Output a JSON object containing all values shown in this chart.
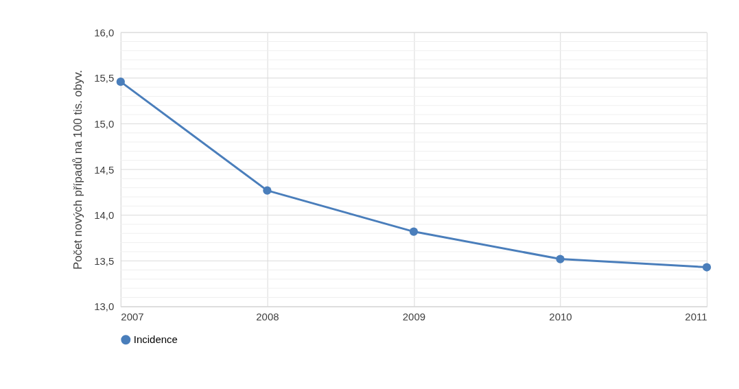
{
  "chart_data": {
    "type": "line",
    "ylabel": "Počet nových případů na 100 tis. obyv.",
    "x": [
      2007,
      2008,
      2009,
      2010,
      2011
    ],
    "series": [
      {
        "name": "Incidence",
        "color": "#4a7ebb",
        "values": [
          15.46,
          14.27,
          13.82,
          13.52,
          13.43
        ]
      }
    ],
    "xlim": [
      2007,
      2011
    ],
    "xticks": [
      2007,
      2008,
      2009,
      2010,
      2011
    ],
    "ylim": [
      13.0,
      16.0
    ],
    "yticks": [
      {
        "value": 13.0,
        "label": "13,0"
      },
      {
        "value": 13.1,
        "label": null
      },
      {
        "value": 13.2,
        "label": null
      },
      {
        "value": 13.3,
        "label": null
      },
      {
        "value": 13.4,
        "label": null
      },
      {
        "value": 13.5,
        "label": "13,5"
      },
      {
        "value": 13.6,
        "label": null
      },
      {
        "value": 13.7,
        "label": null
      },
      {
        "value": 13.8,
        "label": null
      },
      {
        "value": 13.9,
        "label": null
      },
      {
        "value": 14.0,
        "label": "14,0"
      },
      {
        "value": 14.1,
        "label": null
      },
      {
        "value": 14.2,
        "label": null
      },
      {
        "value": 14.3,
        "label": null
      },
      {
        "value": 14.4,
        "label": null
      },
      {
        "value": 14.5,
        "label": "14,5"
      },
      {
        "value": 14.6,
        "label": null
      },
      {
        "value": 14.7,
        "label": null
      },
      {
        "value": 14.8,
        "label": null
      },
      {
        "value": 14.9,
        "label": null
      },
      {
        "value": 15.0,
        "label": "15,0"
      },
      {
        "value": 15.1,
        "label": null
      },
      {
        "value": 15.2,
        "label": null
      },
      {
        "value": 15.3,
        "label": null
      },
      {
        "value": 15.4,
        "label": null
      },
      {
        "value": 15.5,
        "label": "15,5"
      },
      {
        "value": 15.6,
        "label": null
      },
      {
        "value": 15.7,
        "label": null
      },
      {
        "value": 15.8,
        "label": null
      },
      {
        "value": 15.9,
        "label": null
      },
      {
        "value": 16.0,
        "label": "16,0"
      }
    ],
    "grid": true,
    "legend": "bottom",
    "marker": "circle",
    "line_style": "solid"
  }
}
